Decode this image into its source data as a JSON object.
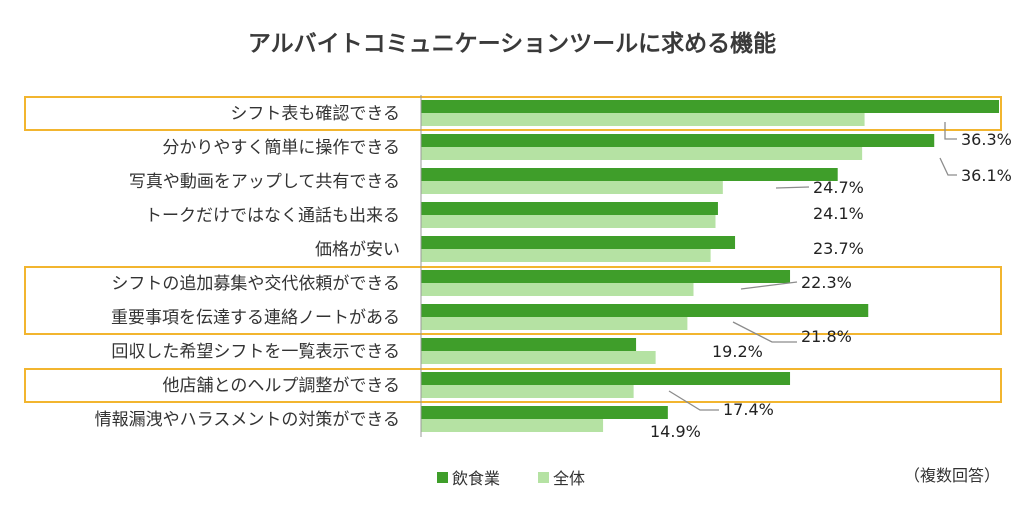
{
  "chart_data": {
    "type": "bar",
    "orientation": "horizontal",
    "title": "アルバイトコミュニケーションツールに求める機能",
    "note": "（複数回答）",
    "categories": [
      "シフト表も確認できる",
      "分かりやすく簡単に操作できる",
      "写真や動画をアップして共有できる",
      "トークだけではなく通話も出来る",
      "価格が安い",
      "シフトの追加募集や交代依頼ができる",
      "重要事項を伝達する連絡ノートがある",
      "回収した希望シフトを一覧表示できる",
      "他店舗とのヘルプ調整ができる",
      "情報漏洩やハラスメントの対策ができる"
    ],
    "series": [
      {
        "name": "飲食業",
        "color": "#3f9e2a",
        "values": [
          47.3,
          42.0,
          34.1,
          24.3,
          25.7,
          30.2,
          36.6,
          17.6,
          30.2,
          20.2
        ]
      },
      {
        "name": "全体",
        "color": "#b5e2a3",
        "values": [
          36.3,
          36.1,
          24.7,
          24.1,
          23.7,
          22.3,
          21.8,
          19.2,
          17.4,
          14.9
        ]
      }
    ],
    "value_labels": [
      "36.3%",
      "36.1%",
      "24.7%",
      "24.1%",
      "23.7%",
      "22.3%",
      "21.8%",
      "19.2%",
      "17.4%",
      "14.9%"
    ],
    "highlight_groups": [
      [
        0
      ],
      [
        5,
        6
      ],
      [
        8
      ]
    ],
    "highlight_color": "#f2b52f",
    "axis_color": "#999999",
    "leader_color": "#8c8c8c",
    "xlim": [
      0,
      47.3
    ],
    "legend_position": "bottom-center",
    "grid": false
  }
}
